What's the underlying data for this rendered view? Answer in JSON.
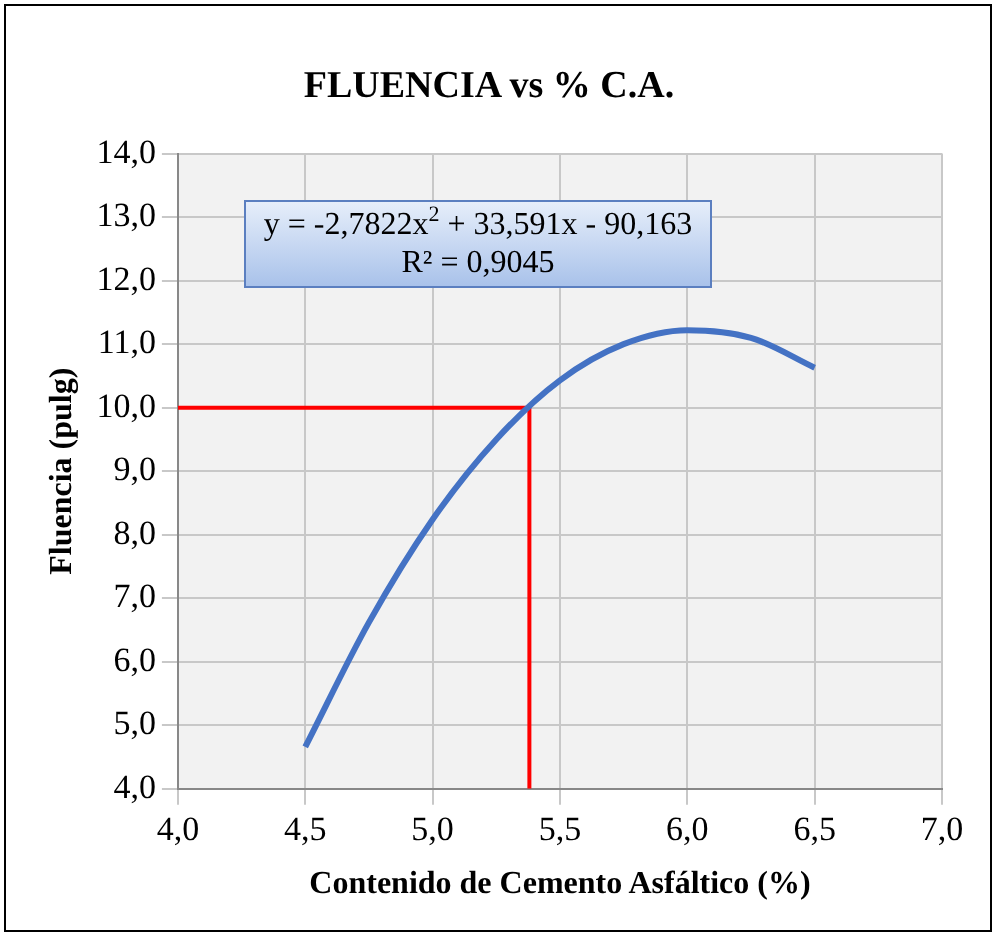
{
  "chart_data": {
    "type": "line",
    "title": "FLUENCIA vs % C.A.",
    "xlabel": "Contenido de Cemento Asfáltico (%)",
    "ylabel": "Fluencia (pulg)",
    "annotations": [
      "y = -2,7822x$^{2}$ + 33,591x - 90,163",
      "R² = 0,9045"
    ],
    "series": [
      {
        "color": "#4472c4",
        "x": [
          4.5,
          4.75,
          5.0,
          5.25,
          5.5,
          5.75,
          6.0,
          6.25,
          6.5
        ],
        "values": [
          4.66,
          6.62,
          8.24,
          9.5,
          10.43,
          11.0,
          11.22,
          11.1,
          10.63
        ]
      },
      {
        "color": "#ff0000",
        "x": [
          4.0,
          5.38,
          5.38
        ],
        "values": [
          10.0,
          10.0,
          4.0
        ]
      }
    ],
    "xlim": [
      4,
      7
    ],
    "xticks": [
      {
        "value": 4,
        "label": "4,0"
      },
      {
        "value": 4.5,
        "label": "4,5"
      },
      {
        "value": 5,
        "label": "5,0"
      },
      {
        "value": 5.5,
        "label": "5,5"
      },
      {
        "value": 6,
        "label": "6,0"
      },
      {
        "value": 6.5,
        "label": "6,5"
      },
      {
        "value": 7,
        "label": "7,0"
      }
    ],
    "ylim": [
      4,
      14
    ],
    "yticks": [
      {
        "value": 4,
        "label": "4,0"
      },
      {
        "value": 5,
        "label": "5,0"
      },
      {
        "value": 6,
        "label": "6,0"
      },
      {
        "value": 7,
        "label": "7,0"
      },
      {
        "value": 8,
        "label": "8,0"
      },
      {
        "value": 9,
        "label": "9,0"
      },
      {
        "value": 10,
        "label": "10,0"
      },
      {
        "value": 11,
        "label": "11,0"
      },
      {
        "value": 12,
        "label": "12,0"
      },
      {
        "value": 13,
        "label": "13,0"
      },
      {
        "value": 14,
        "label": "14,0"
      }
    ],
    "grid": true,
    "legend": false,
    "marker": "none"
  }
}
